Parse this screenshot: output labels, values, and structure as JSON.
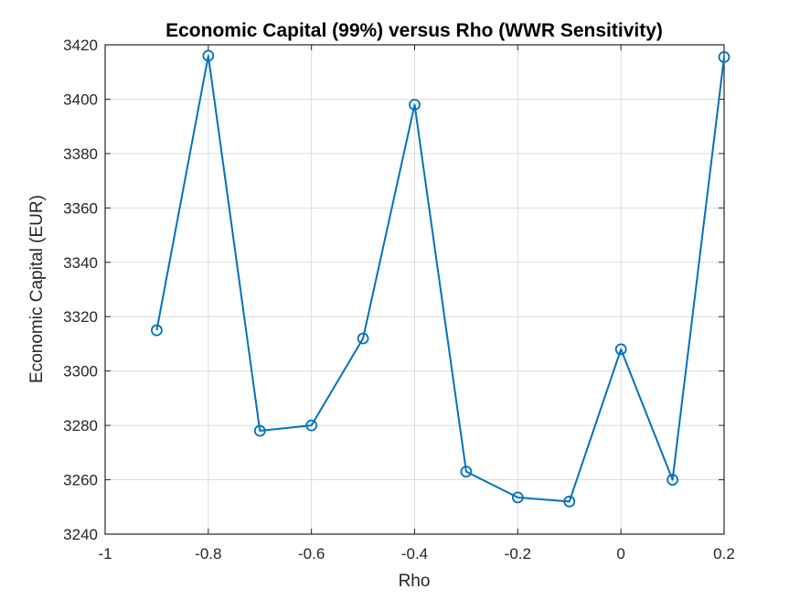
{
  "chart_data": {
    "type": "line",
    "title": "Economic Capital (99%) versus Rho (WWR Sensitivity)",
    "xlabel": "Rho",
    "ylabel": "Economic Capital (EUR)",
    "xlim": [
      -1,
      0.2
    ],
    "ylim": [
      3240,
      3420
    ],
    "xticks": [
      -1,
      -0.8,
      -0.6,
      -0.4,
      -0.2,
      0,
      0.2
    ],
    "xtick_labels": [
      "-1",
      "-0.8",
      "-0.6",
      "-0.4",
      "-0.2",
      "0",
      "0.2"
    ],
    "yticks": [
      3240,
      3260,
      3280,
      3300,
      3320,
      3340,
      3360,
      3380,
      3400,
      3420
    ],
    "ytick_labels": [
      "3240",
      "3260",
      "3280",
      "3300",
      "3320",
      "3340",
      "3360",
      "3380",
      "3400",
      "3420"
    ],
    "grid": true,
    "marker": "circle",
    "line_color": "#0072BD",
    "series": [
      {
        "x": [
          -0.9,
          -0.8,
          -0.7,
          -0.6,
          -0.5,
          -0.4,
          -0.3,
          -0.2,
          -0.1,
          0,
          0.1,
          0.2
        ],
        "values": [
          3315,
          3416,
          3278,
          3280,
          3312,
          3398,
          3263,
          3253.5,
          3252,
          3308,
          3260,
          3415.5
        ]
      }
    ]
  }
}
